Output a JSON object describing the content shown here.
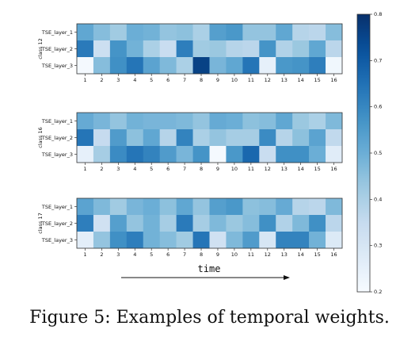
{
  "caption": "Figure 5: Examples of temporal weights.",
  "chart_data": {
    "type": "heatmap",
    "colormap": "Blues",
    "colorbar": {
      "range": [
        0.2,
        0.8
      ],
      "ticks": [
        "0.2",
        "0.3",
        "0.4",
        "0.5",
        "0.6",
        "0.7",
        "0.8"
      ]
    },
    "xlabel": "time",
    "x_ticks": [
      "1",
      "2",
      "3",
      "4",
      "5",
      "6",
      "7",
      "8",
      "9",
      "10",
      "11",
      "12",
      "13",
      "14",
      "15",
      "16"
    ],
    "row_labels": [
      "TSE_layer_1",
      "TSE_layer_2",
      "TSE_layer_3"
    ],
    "panels": [
      {
        "ylabel": "class 12",
        "values": [
          [
            0.52,
            0.46,
            0.42,
            0.5,
            0.49,
            0.44,
            0.45,
            0.4,
            0.54,
            0.56,
            0.44,
            0.44,
            0.52,
            0.38,
            0.37,
            0.46
          ],
          [
            0.63,
            0.33,
            0.57,
            0.49,
            0.4,
            0.34,
            0.62,
            0.42,
            0.43,
            0.38,
            0.37,
            0.57,
            0.39,
            0.43,
            0.52,
            0.37
          ],
          [
            0.21,
            0.46,
            0.58,
            0.64,
            0.53,
            0.47,
            0.4,
            0.76,
            0.48,
            0.52,
            0.64,
            0.25,
            0.56,
            0.57,
            0.62,
            0.22
          ]
        ]
      },
      {
        "ylabel": "class 16",
        "values": [
          [
            0.51,
            0.48,
            0.44,
            0.49,
            0.48,
            0.48,
            0.47,
            0.44,
            0.51,
            0.5,
            0.45,
            0.46,
            0.52,
            0.43,
            0.4,
            0.47
          ],
          [
            0.64,
            0.35,
            0.55,
            0.45,
            0.52,
            0.38,
            0.61,
            0.4,
            0.44,
            0.41,
            0.41,
            0.59,
            0.38,
            0.45,
            0.53,
            0.36
          ],
          [
            0.25,
            0.41,
            0.59,
            0.64,
            0.61,
            0.55,
            0.48,
            0.57,
            0.21,
            0.56,
            0.67,
            0.34,
            0.58,
            0.58,
            0.5,
            0.27
          ]
        ]
      },
      {
        "ylabel": "class 17",
        "values": [
          [
            0.53,
            0.47,
            0.42,
            0.48,
            0.5,
            0.45,
            0.52,
            0.44,
            0.54,
            0.56,
            0.45,
            0.46,
            0.51,
            0.38,
            0.37,
            0.47
          ],
          [
            0.62,
            0.32,
            0.54,
            0.44,
            0.49,
            0.41,
            0.63,
            0.41,
            0.47,
            0.43,
            0.46,
            0.58,
            0.39,
            0.47,
            0.58,
            0.37
          ],
          [
            0.26,
            0.44,
            0.58,
            0.62,
            0.49,
            0.46,
            0.42,
            0.64,
            0.32,
            0.47,
            0.55,
            0.3,
            0.61,
            0.61,
            0.49,
            0.28
          ]
        ]
      }
    ]
  }
}
